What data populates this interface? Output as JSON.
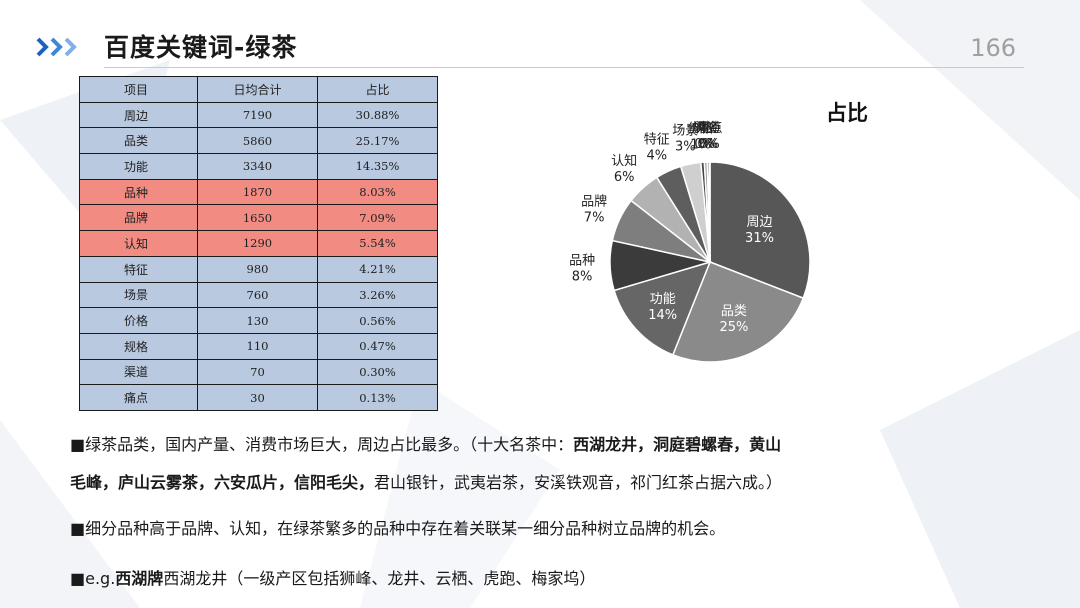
{
  "header": {
    "title": "百度关键词-绿茶",
    "page_number": "166"
  },
  "table": {
    "headers": [
      "项目",
      "日均合计",
      "占比"
    ],
    "rows": [
      {
        "name": "周边",
        "value": "7190",
        "share": "30.88%",
        "highlight": false
      },
      {
        "name": "品类",
        "value": "5860",
        "share": "25.17%",
        "highlight": false
      },
      {
        "name": "功能",
        "value": "3340",
        "share": "14.35%",
        "highlight": false
      },
      {
        "name": "品种",
        "value": "1870",
        "share": "8.03%",
        "highlight": true
      },
      {
        "name": "品牌",
        "value": "1650",
        "share": "7.09%",
        "highlight": true
      },
      {
        "name": "认知",
        "value": "1290",
        "share": "5.54%",
        "highlight": true
      },
      {
        "name": "特征",
        "value": "980",
        "share": "4.21%",
        "highlight": false
      },
      {
        "name": "场景",
        "value": "760",
        "share": "3.26%",
        "highlight": false
      },
      {
        "name": "价格",
        "value": "130",
        "share": "0.56%",
        "highlight": false
      },
      {
        "name": "规格",
        "value": "110",
        "share": "0.47%",
        "highlight": false
      },
      {
        "name": "渠道",
        "value": "70",
        "share": "0.30%",
        "highlight": false
      },
      {
        "name": "痛点",
        "value": "30",
        "share": "0.13%",
        "highlight": false
      }
    ],
    "colors": {
      "header": "#b9c9e0",
      "row": "#b9c9e0",
      "highlight": "#f28b82"
    }
  },
  "chart_data": {
    "type": "pie",
    "title": "占比",
    "categories": [
      "周边",
      "品类",
      "功能",
      "品种",
      "品牌",
      "认知",
      "特征",
      "场景",
      "价格",
      "规格",
      "渠道",
      "痛点"
    ],
    "values": [
      30.88,
      25.17,
      14.35,
      8.03,
      7.09,
      5.54,
      4.21,
      3.26,
      0.56,
      0.47,
      0.3,
      0.13
    ],
    "labels": [
      "31%",
      "25%",
      "14%",
      "8%",
      "7%",
      "6%",
      "4%",
      "3%",
      "1%",
      "0%",
      "0%",
      "0%"
    ],
    "colors": [
      "#575757",
      "#8a8a8a",
      "#666666",
      "#3b3b3b",
      "#7e7e7e",
      "#b2b2b2",
      "#5e5e5e",
      "#cfcfcf",
      "#454545",
      "#9c9c9c",
      "#2a2a2a",
      "#d9d9d9"
    ],
    "start_angle_deg": 0,
    "direction": "clockwise",
    "legend": "none"
  },
  "notes": [
    {
      "segments": [
        {
          "text": "■绿茶品类，国内产量、消费市场巨大，周边占比最多。（十大名茶中：",
          "bold": false
        },
        {
          "text": "西湖龙井，洞庭碧螺春，黄山",
          "bold": true
        }
      ]
    },
    {
      "segments": [
        {
          "text": "毛峰，庐山云雾茶，六安瓜片，信阳毛尖，",
          "bold": true
        },
        {
          "text": "君山银针，武夷岩茶，安溪铁观音，祁门红茶占据六成。）",
          "bold": false
        }
      ]
    },
    {
      "segments": [
        {
          "text": "■细分品种高于品牌、认知，在绿茶繁多的品种中存在着关联某一细分品种树立品牌的机会。",
          "bold": false
        }
      ]
    },
    {
      "segments": [
        {
          "text": "■e.g.",
          "bold": false
        },
        {
          "text": "西湖牌",
          "bold": true
        },
        {
          "text": "西湖龙井（一级产区包括狮峰、龙井、云栖、虎跑、梅家坞）",
          "bold": false
        }
      ]
    }
  ],
  "decor": {
    "accent": "#1f5fbf",
    "accent_light": "#7fb0ea",
    "rule": "#c7cbd1",
    "page_num_color": "#a0a0a0"
  }
}
